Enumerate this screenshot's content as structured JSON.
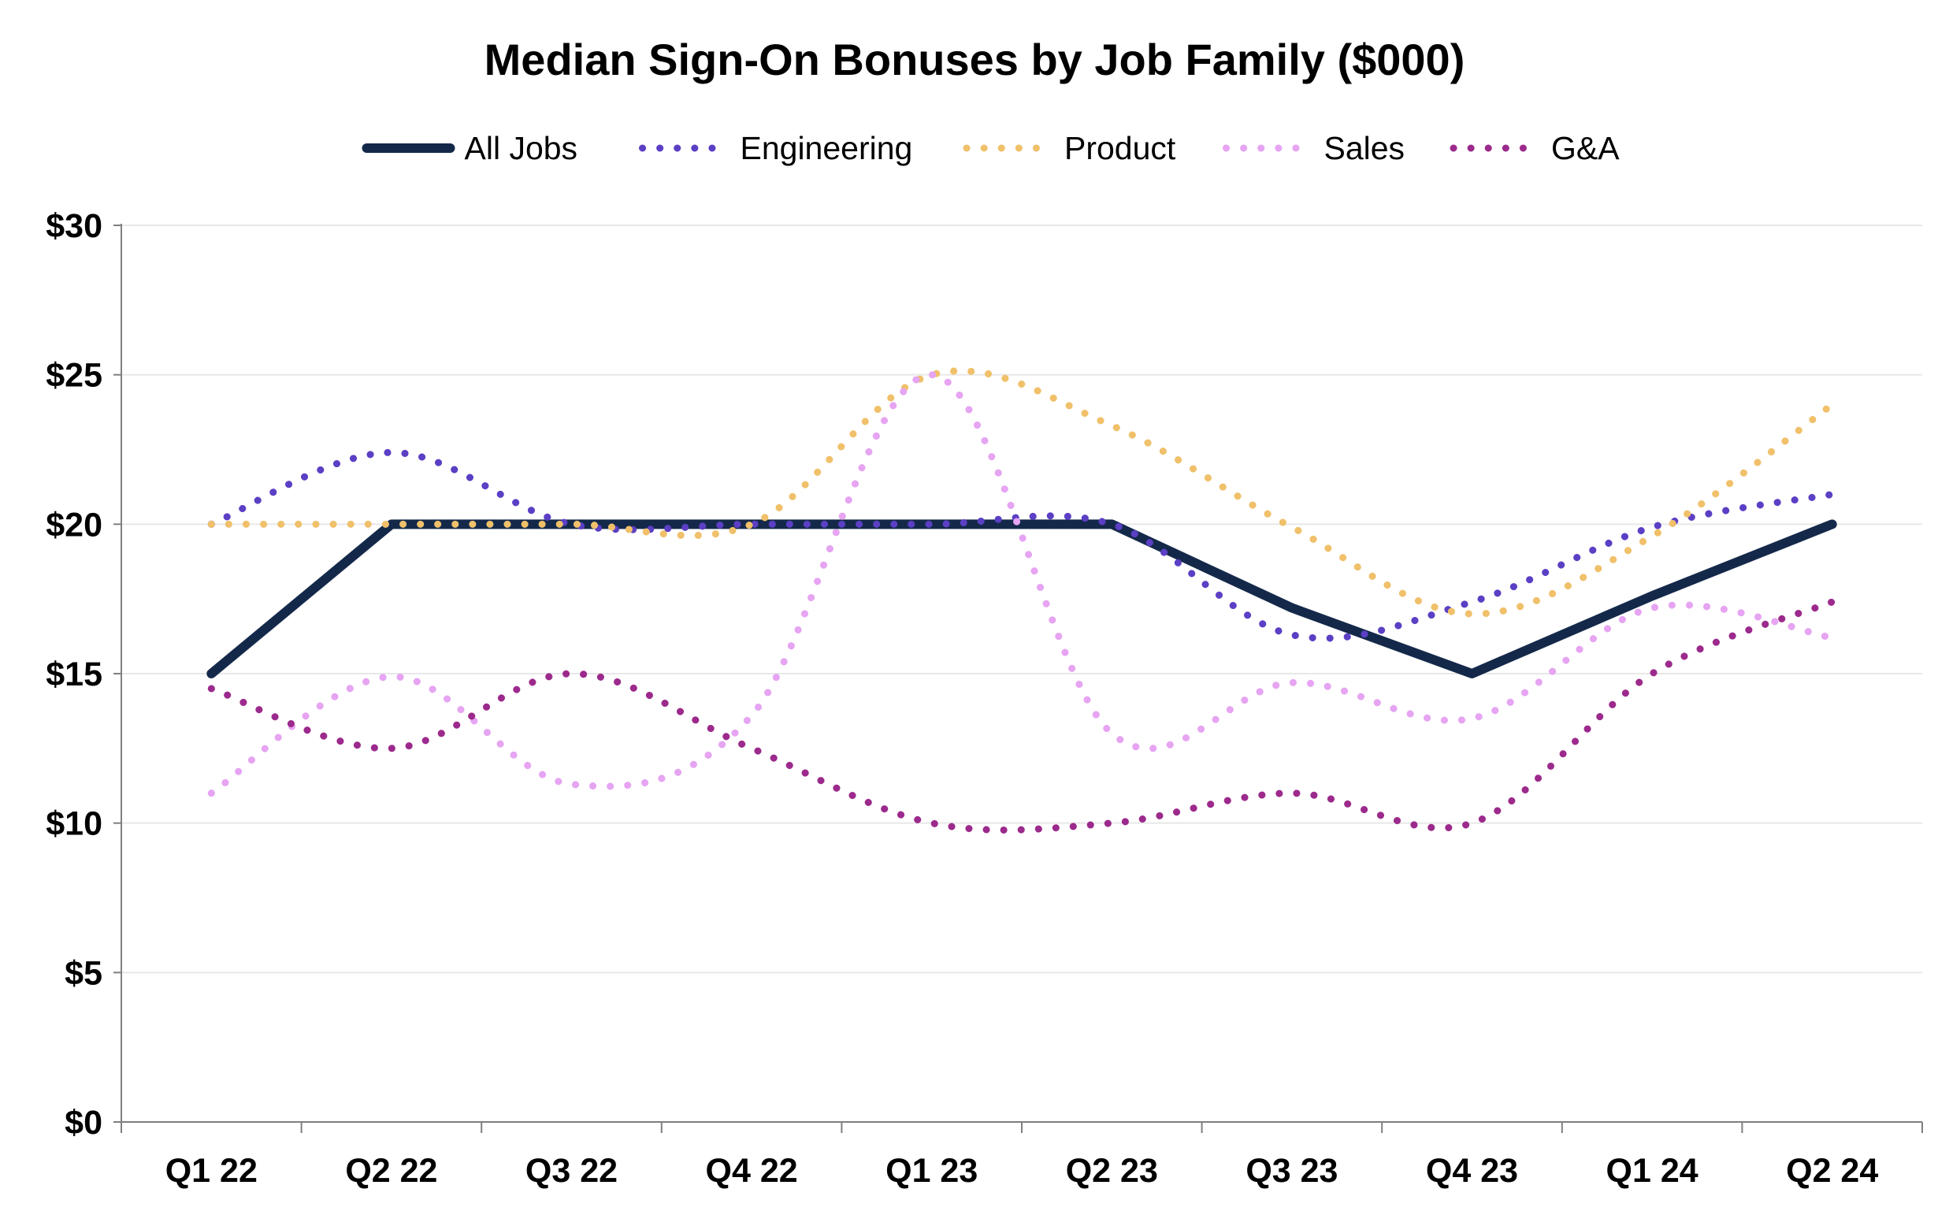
{
  "chart_data": {
    "type": "line",
    "title": "Median Sign-On Bonuses by Job Family ($000)",
    "xlabel": "",
    "ylabel": "",
    "categories": [
      "Q1 22",
      "Q2 22",
      "Q3 22",
      "Q4 22",
      "Q1 23",
      "Q2 23",
      "Q3 23",
      "Q4 23",
      "Q1 24",
      "Q2 24"
    ],
    "ylim": [
      0,
      30
    ],
    "yticks": [
      0,
      5,
      10,
      15,
      20,
      25,
      30
    ],
    "ytick_labels": [
      "$0",
      "$5",
      "$10",
      "$15",
      "$20",
      "$25",
      "$30"
    ],
    "grid": true,
    "legend_position": "top",
    "series": [
      {
        "name": "All Jobs",
        "style": "solid",
        "color": "#14294a",
        "values": [
          15,
          20,
          20,
          20,
          20,
          20,
          17.2,
          15,
          17.6,
          20
        ]
      },
      {
        "name": "Engineering",
        "style": "dotted",
        "color": "#5b3fc4",
        "values": [
          20,
          22.4,
          20,
          20,
          20,
          20,
          16.3,
          17.4,
          19.9,
          21
        ]
      },
      {
        "name": "Product",
        "style": "dotted",
        "color": "#f0c06a",
        "values": [
          20,
          20,
          20,
          20,
          25,
          23.3,
          19.9,
          17,
          19.6,
          24
        ]
      },
      {
        "name": "Sales",
        "style": "dotted",
        "color": "#e6a4f2",
        "values": [
          11,
          14.9,
          11.3,
          13.6,
          25,
          13,
          14.7,
          13.5,
          17.2,
          16.2
        ]
      },
      {
        "name": "G&A",
        "style": "dotted",
        "color": "#9c2a8c",
        "values": [
          14.5,
          12.5,
          15,
          12.5,
          10,
          10,
          11,
          10,
          15,
          17.4
        ]
      }
    ]
  }
}
